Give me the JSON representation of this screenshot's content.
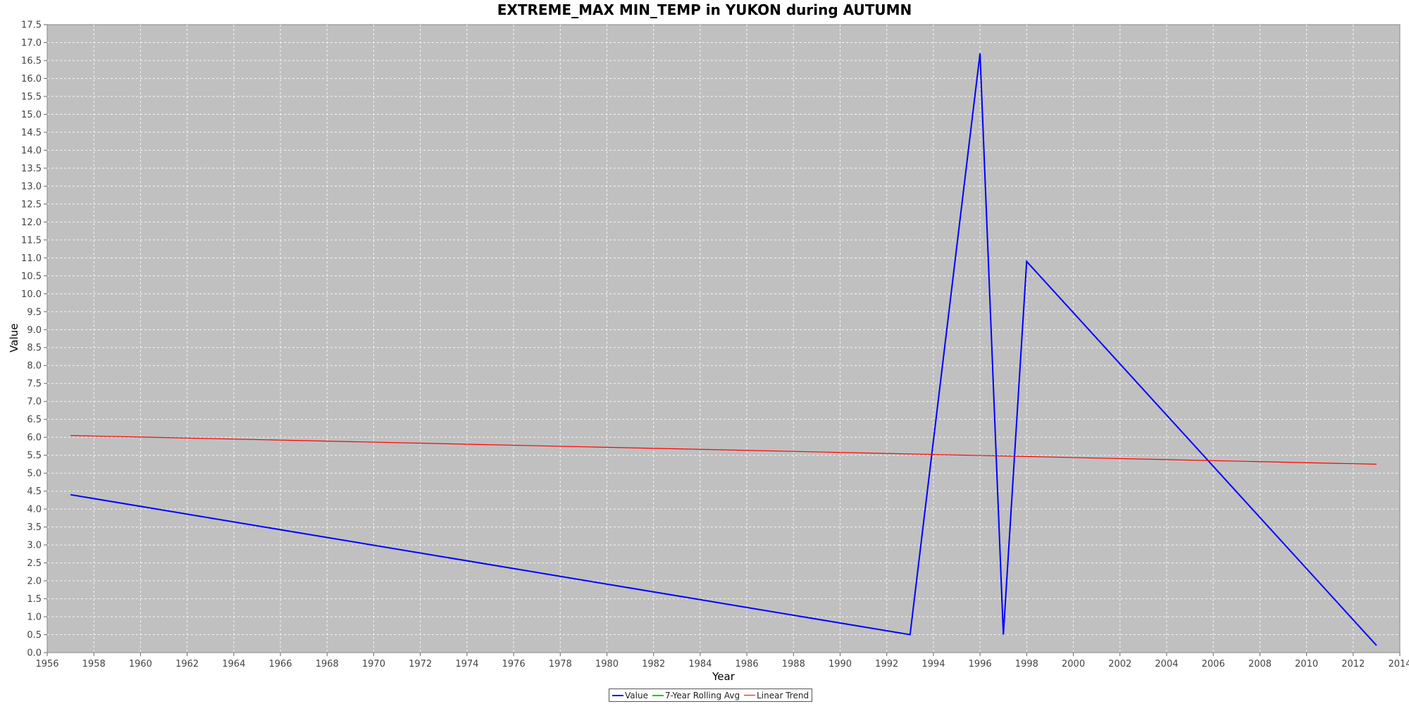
{
  "chart_data": {
    "type": "line",
    "title": "EXTREME_MAX MIN_TEMP in YUKON during AUTUMN",
    "xlabel": "Year",
    "ylabel": "Value",
    "xlim": [
      1956,
      2014
    ],
    "ylim": [
      0.0,
      17.5
    ],
    "x_ticks": [
      1956,
      1958,
      1960,
      1962,
      1964,
      1966,
      1968,
      1970,
      1972,
      1974,
      1976,
      1978,
      1980,
      1982,
      1984,
      1986,
      1988,
      1990,
      1992,
      1994,
      1996,
      1998,
      2000,
      2002,
      2004,
      2006,
      2008,
      2010,
      2012,
      2014
    ],
    "y_ticks": [
      "0.0",
      "0.5",
      "1.0",
      "1.5",
      "2.0",
      "2.5",
      "3.0",
      "3.5",
      "4.0",
      "4.5",
      "5.0",
      "5.5",
      "6.0",
      "6.5",
      "7.0",
      "7.5",
      "8.0",
      "8.5",
      "9.0",
      "9.5",
      "10.0",
      "10.5",
      "11.0",
      "11.5",
      "12.0",
      "12.5",
      "13.0",
      "13.5",
      "14.0",
      "14.5",
      "15.0",
      "15.5",
      "16.0",
      "16.5",
      "17.0",
      "17.5"
    ],
    "grid": true,
    "legend_position": "bottom-center",
    "series": [
      {
        "name": "Value",
        "color": "#0000ff",
        "x": [
          1957,
          1993,
          1996,
          1997,
          1998,
          2013
        ],
        "y": [
          4.4,
          0.5,
          16.7,
          0.5,
          10.9,
          0.2
        ]
      },
      {
        "name": "7-Year Rolling Avg",
        "color": "#00cc00",
        "x": [],
        "y": []
      },
      {
        "name": "Linear Trend",
        "color": "#ff0000",
        "x": [
          1957,
          2013
        ],
        "y": [
          6.05,
          5.25
        ]
      }
    ]
  }
}
